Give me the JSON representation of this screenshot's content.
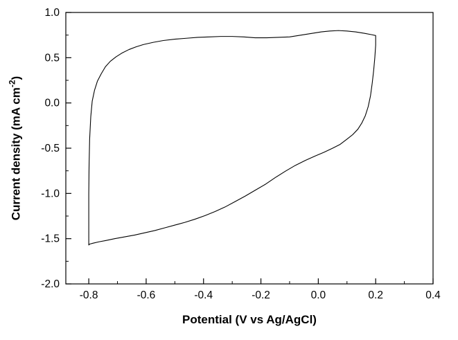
{
  "page": {
    "background_color": "#ffffff",
    "line_color": "#000000"
  },
  "chart_data": {
    "type": "line",
    "title": "",
    "xlabel": "Potential (V vs Ag/AgCl)",
    "ylabel": "Current density (mA cm⁻²)",
    "ylabel_parts": {
      "prefix": "Current density (mA cm",
      "sup": "-2",
      "suffix": ")"
    },
    "xlim": [
      -0.88,
      0.4
    ],
    "ylim": [
      -2.0,
      1.0
    ],
    "grid": false,
    "legend": false,
    "x_ticks": [
      {
        "value": -0.8,
        "label": "-0.8"
      },
      {
        "value": -0.6,
        "label": "-0.6"
      },
      {
        "value": -0.4,
        "label": "-0.4"
      },
      {
        "value": -0.2,
        "label": "-0.2"
      },
      {
        "value": 0.0,
        "label": "0.0"
      },
      {
        "value": 0.2,
        "label": "0.2"
      },
      {
        "value": 0.4,
        "label": "0.4"
      }
    ],
    "x_minor_ticks": [
      -0.7,
      -0.5,
      -0.3,
      -0.1,
      0.1,
      0.3
    ],
    "y_ticks": [
      {
        "value": -2.0,
        "label": "-2.0"
      },
      {
        "value": -1.5,
        "label": "-1.5"
      },
      {
        "value": -1.0,
        "label": "-1.0"
      },
      {
        "value": -0.5,
        "label": "-0.5"
      },
      {
        "value": 0.0,
        "label": "0.0"
      },
      {
        "value": 0.5,
        "label": "0.5"
      },
      {
        "value": 1.0,
        "label": "1.0"
      }
    ],
    "y_minor_ticks": [
      -1.75,
      -1.25,
      -0.75,
      -0.25,
      0.25,
      0.75
    ],
    "series": [
      {
        "name": "cyclic-voltammogram-loop",
        "color": "#000000",
        "points": [
          [
            -0.8,
            -1.57
          ],
          [
            -0.8,
            -1.3
          ],
          [
            -0.8,
            -1.0
          ],
          [
            -0.799,
            -0.7
          ],
          [
            -0.797,
            -0.4
          ],
          [
            -0.793,
            -0.15
          ],
          [
            -0.788,
            0.02
          ],
          [
            -0.78,
            0.14
          ],
          [
            -0.77,
            0.24
          ],
          [
            -0.757,
            0.32
          ],
          [
            -0.742,
            0.4
          ],
          [
            -0.725,
            0.46
          ],
          [
            -0.705,
            0.51
          ],
          [
            -0.685,
            0.55
          ],
          [
            -0.66,
            0.59
          ],
          [
            -0.635,
            0.62
          ],
          [
            -0.61,
            0.645
          ],
          [
            -0.575,
            0.67
          ],
          [
            -0.54,
            0.69
          ],
          [
            -0.5,
            0.705
          ],
          [
            -0.46,
            0.715
          ],
          [
            -0.42,
            0.725
          ],
          [
            -0.38,
            0.73
          ],
          [
            -0.34,
            0.735
          ],
          [
            -0.3,
            0.735
          ],
          [
            -0.26,
            0.73
          ],
          [
            -0.22,
            0.72
          ],
          [
            -0.18,
            0.72
          ],
          [
            -0.14,
            0.725
          ],
          [
            -0.1,
            0.73
          ],
          [
            -0.06,
            0.75
          ],
          [
            -0.02,
            0.77
          ],
          [
            0.01,
            0.785
          ],
          [
            0.04,
            0.795
          ],
          [
            0.07,
            0.8
          ],
          [
            0.1,
            0.795
          ],
          [
            0.13,
            0.785
          ],
          [
            0.16,
            0.77
          ],
          [
            0.185,
            0.755
          ],
          [
            0.2,
            0.745
          ],
          [
            0.2,
            0.64
          ],
          [
            0.197,
            0.5
          ],
          [
            0.193,
            0.36
          ],
          [
            0.188,
            0.22
          ],
          [
            0.182,
            0.08
          ],
          [
            0.174,
            -0.04
          ],
          [
            0.164,
            -0.14
          ],
          [
            0.152,
            -0.22
          ],
          [
            0.138,
            -0.29
          ],
          [
            0.12,
            -0.35
          ],
          [
            0.1,
            -0.4
          ],
          [
            0.075,
            -0.46
          ],
          [
            0.05,
            -0.5
          ],
          [
            0.02,
            -0.545
          ],
          [
            -0.01,
            -0.585
          ],
          [
            -0.045,
            -0.635
          ],
          [
            -0.08,
            -0.69
          ],
          [
            -0.115,
            -0.755
          ],
          [
            -0.15,
            -0.825
          ],
          [
            -0.185,
            -0.9
          ],
          [
            -0.22,
            -0.965
          ],
          [
            -0.255,
            -1.03
          ],
          [
            -0.29,
            -1.09
          ],
          [
            -0.325,
            -1.15
          ],
          [
            -0.36,
            -1.2
          ],
          [
            -0.395,
            -1.245
          ],
          [
            -0.43,
            -1.285
          ],
          [
            -0.465,
            -1.32
          ],
          [
            -0.5,
            -1.35
          ],
          [
            -0.535,
            -1.38
          ],
          [
            -0.57,
            -1.41
          ],
          [
            -0.605,
            -1.435
          ],
          [
            -0.64,
            -1.46
          ],
          [
            -0.675,
            -1.48
          ],
          [
            -0.71,
            -1.5
          ],
          [
            -0.74,
            -1.52
          ],
          [
            -0.765,
            -1.535
          ],
          [
            -0.785,
            -1.55
          ],
          [
            -0.797,
            -1.56
          ],
          [
            -0.8,
            -1.57
          ]
        ]
      }
    ]
  }
}
